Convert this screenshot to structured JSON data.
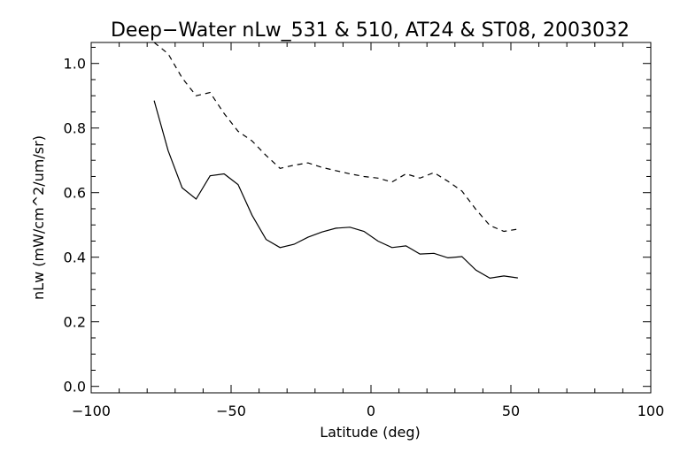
{
  "chart_data": {
    "type": "line",
    "title": "Deep−Water nLw_531 & 510, AT24 & ST08, 2003032",
    "xlabel": "Latitude (deg)",
    "ylabel": "nLw (mW/cm^2/um/sr)",
    "xlim": [
      -100,
      100
    ],
    "ylim": [
      -0.02,
      1.065
    ],
    "x_ticks": [
      -100,
      -50,
      0,
      50,
      100
    ],
    "x_tick_labels": [
      "−100",
      "−50",
      "0",
      "50",
      "100"
    ],
    "y_ticks": [
      0.0,
      0.2,
      0.4,
      0.6,
      0.8,
      1.0
    ],
    "y_tick_labels": [
      "0.0",
      "0.2",
      "0.4",
      "0.6",
      "0.8",
      "1.0"
    ],
    "series": [
      {
        "name": "solid",
        "style": "solid",
        "x": [
          -77.5,
          -72.5,
          -67.5,
          -62.5,
          -57.5,
          -52.5,
          -47.5,
          -42.5,
          -37.5,
          -32.5,
          -27.5,
          -22.5,
          -17.5,
          -12.5,
          -7.5,
          -2.5,
          2.5,
          7.5,
          12.5,
          17.5,
          22.5,
          27.5,
          32.5,
          37.5,
          42.5,
          47.5,
          52.5
        ],
        "y": [
          0.885,
          0.73,
          0.615,
          0.58,
          0.652,
          0.658,
          0.625,
          0.53,
          0.455,
          0.43,
          0.44,
          0.462,
          0.478,
          0.49,
          0.493,
          0.48,
          0.45,
          0.43,
          0.435,
          0.41,
          0.412,
          0.398,
          0.402,
          0.36,
          0.335,
          0.342,
          0.336
        ]
      },
      {
        "name": "dashed",
        "style": "dashed",
        "x": [
          -77.5,
          -72.5,
          -67.5,
          -62.5,
          -57.5,
          -52.5,
          -47.5,
          -42.5,
          -37.5,
          -32.5,
          -27.5,
          -22.5,
          -17.5,
          -12.5,
          -7.5,
          -2.5,
          2.5,
          7.5,
          12.5,
          17.5,
          22.5,
          27.5,
          32.5,
          37.5,
          42.5,
          47.5,
          52.5
        ],
        "y": [
          1.065,
          1.03,
          0.955,
          0.9,
          0.91,
          0.845,
          0.79,
          0.76,
          0.715,
          0.675,
          0.685,
          0.692,
          0.678,
          0.668,
          0.658,
          0.65,
          0.645,
          0.633,
          0.658,
          0.645,
          0.662,
          0.635,
          0.605,
          0.548,
          0.498,
          0.48,
          0.487
        ]
      }
    ]
  }
}
